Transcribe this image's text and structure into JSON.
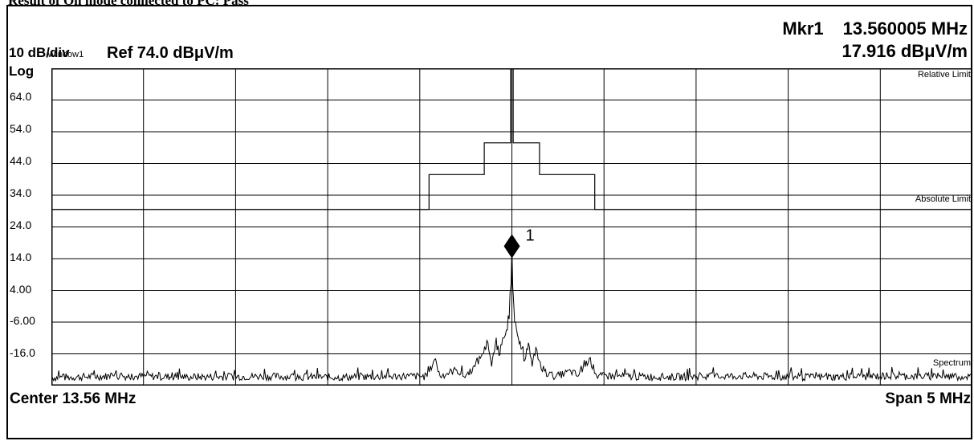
{
  "caption": "Result of On mode connected to PC: Pass",
  "marker": {
    "label": "Mkr1",
    "frequency": "13.560005 MHz",
    "level": "17.916 dBμV/m",
    "marker_number": "1"
  },
  "header": {
    "scale": "10 dB/div",
    "window": "Window1",
    "ref": "Ref 74.0 dBμV/m",
    "mode": "Log"
  },
  "footer": {
    "center": "Center  13.56 MHz",
    "span": "Span 5 MHz"
  },
  "trace_labels": {
    "relative_limit": "Relative Limit",
    "absolute_limit": "Absolute Limit",
    "spectrum": "Spectrum"
  },
  "chart_data": {
    "type": "line",
    "x_center_mhz": 13.56,
    "x_span_mhz": 5,
    "xlim": [
      11.06,
      16.06
    ],
    "ylim": [
      -26.0,
      74.0
    ],
    "y_ticks": [
      "64.0",
      "54.0",
      "44.0",
      "34.0",
      "24.0",
      "14.0",
      "4.00",
      "-6.00",
      "-16.0"
    ],
    "grid": true,
    "absolute_limit_dbuv_m": 29.5,
    "relative_limit": [
      {
        "x": 11.06,
        "y": 29.5
      },
      {
        "x": 13.11,
        "y": 29.5
      },
      {
        "x": 13.11,
        "y": 40.5
      },
      {
        "x": 13.41,
        "y": 40.5
      },
      {
        "x": 13.41,
        "y": 50.5
      },
      {
        "x": 13.553,
        "y": 50.5
      },
      {
        "x": 13.553,
        "y": 74.0
      },
      {
        "x": 13.567,
        "y": 74.0
      },
      {
        "x": 13.567,
        "y": 50.5
      },
      {
        "x": 13.71,
        "y": 50.5
      },
      {
        "x": 13.71,
        "y": 40.5
      },
      {
        "x": 14.01,
        "y": 40.5
      },
      {
        "x": 14.01,
        "y": 29.5
      },
      {
        "x": 16.06,
        "y": 29.5
      }
    ],
    "spectrum": [
      {
        "x": 11.06,
        "y": -23.5
      },
      {
        "x": 11.4,
        "y": -23.0
      },
      {
        "x": 11.8,
        "y": -23.3
      },
      {
        "x": 12.2,
        "y": -23.1
      },
      {
        "x": 12.6,
        "y": -23.4
      },
      {
        "x": 13.0,
        "y": -23.0
      },
      {
        "x": 13.1,
        "y": -23.2
      },
      {
        "x": 13.14,
        "y": -17.8
      },
      {
        "x": 13.17,
        "y": -23.0
      },
      {
        "x": 13.26,
        "y": -21.0
      },
      {
        "x": 13.3,
        "y": -23.2
      },
      {
        "x": 13.36,
        "y": -20.0
      },
      {
        "x": 13.4,
        "y": -16.0
      },
      {
        "x": 13.43,
        "y": -12.5
      },
      {
        "x": 13.45,
        "y": -20.0
      },
      {
        "x": 13.47,
        "y": -13.0
      },
      {
        "x": 13.49,
        "y": -16.5
      },
      {
        "x": 13.51,
        "y": -11.0
      },
      {
        "x": 13.53,
        "y": -8.5
      },
      {
        "x": 13.545,
        "y": -5.0
      },
      {
        "x": 13.555,
        "y": 6.0
      },
      {
        "x": 13.56,
        "y": 18.2
      },
      {
        "x": 13.565,
        "y": 5.0
      },
      {
        "x": 13.575,
        "y": -6.0
      },
      {
        "x": 13.59,
        "y": -10.0
      },
      {
        "x": 13.61,
        "y": -14.5
      },
      {
        "x": 13.63,
        "y": -18.0
      },
      {
        "x": 13.65,
        "y": -12.5
      },
      {
        "x": 13.67,
        "y": -20.0
      },
      {
        "x": 13.69,
        "y": -14.0
      },
      {
        "x": 13.72,
        "y": -21.0
      },
      {
        "x": 13.76,
        "y": -22.5
      },
      {
        "x": 13.8,
        "y": -23.1
      },
      {
        "x": 13.88,
        "y": -21.5
      },
      {
        "x": 13.92,
        "y": -23.0
      },
      {
        "x": 13.98,
        "y": -17.5
      },
      {
        "x": 14.02,
        "y": -23.0
      },
      {
        "x": 14.4,
        "y": -23.3
      },
      {
        "x": 14.8,
        "y": -23.0
      },
      {
        "x": 15.2,
        "y": -23.4
      },
      {
        "x": 15.6,
        "y": -23.0
      },
      {
        "x": 16.06,
        "y": -23.2
      }
    ],
    "marker_point": {
      "x": 13.560005,
      "y": 17.916
    }
  }
}
